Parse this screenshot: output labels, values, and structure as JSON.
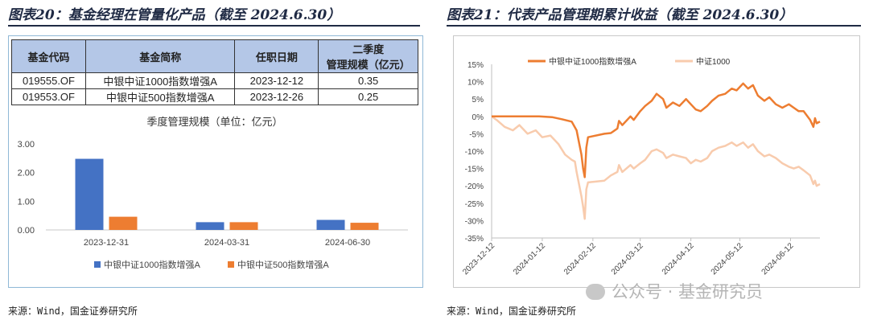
{
  "left_figure": {
    "title": "图表20：基金经理在管量化产品（截至 2024.6.30）",
    "source": "来源：Wind，国金证券研究所",
    "table": {
      "headers": [
        "基金代码",
        "基金简称",
        "任职日期",
        "二季度",
        "管理规模（亿元）"
      ],
      "rows": [
        [
          "019555.OF",
          "中银中证1000指数增强A",
          "2023-12-12",
          "0.35"
        ],
        [
          "019553.OF",
          "中银中证500指数增强A",
          "2023-12-26",
          "0.25"
        ]
      ]
    }
  },
  "right_figure": {
    "title": "图表21：代表产品管理期累计收益（截至 2024.6.30）",
    "source": "来源：Wind，国金证券研究所"
  },
  "watermark": "公众号 · 基金研究员",
  "chart_data": [
    {
      "type": "bar",
      "title": "季度管理规模（单位：亿元）",
      "categories": [
        "2023-12-31",
        "2024-03-31",
        "2024-06-30"
      ],
      "series": [
        {
          "name": "中银中证1000指数增强A",
          "color": "#4472c4",
          "values": [
            2.48,
            0.27,
            0.35
          ]
        },
        {
          "name": "中银中证500指数增强A",
          "color": "#ed7d31",
          "values": [
            0.46,
            0.27,
            0.25
          ]
        }
      ],
      "ylim": [
        0,
        3
      ],
      "yticks": [
        "0.00",
        "1.00",
        "2.00",
        "3.00"
      ],
      "legend": "bottom",
      "grid": false
    },
    {
      "type": "line",
      "ylim": [
        -35,
        15
      ],
      "yticks": [
        "15%",
        "10%",
        "5%",
        "0%",
        "-5%",
        "-10%",
        "-15%",
        "-20%",
        "-25%",
        "-30%",
        "-35%"
      ],
      "xticks": [
        "2023-12-12",
        "2024-01-12",
        "2024-02-12",
        "2024-03-12",
        "2024-04-12",
        "2024-05-12",
        "2024-06-12"
      ],
      "xrange": [
        "2023-12-12",
        "2024-06-30"
      ],
      "legend": "top-left",
      "grid": false,
      "series": [
        {
          "name": "中银中证1000指数增强A",
          "color": "#ed7d31",
          "points": [
            [
              "2023-12-12",
              0
            ],
            [
              "2023-12-20",
              0
            ],
            [
              "2024-01-02",
              0
            ],
            [
              "2024-01-10",
              0
            ],
            [
              "2024-01-18",
              -0.2
            ],
            [
              "2024-01-24",
              -0.8
            ],
            [
              "2024-01-30",
              -1.5
            ],
            [
              "2024-02-02",
              -4
            ],
            [
              "2024-02-05",
              -11
            ],
            [
              "2024-02-06",
              -15
            ],
            [
              "2024-02-07",
              -17.5
            ],
            [
              "2024-02-08",
              -9
            ],
            [
              "2024-02-09",
              -6
            ],
            [
              "2024-02-19",
              -5
            ],
            [
              "2024-02-23",
              -4.8
            ],
            [
              "2024-02-27",
              -3.5
            ],
            [
              "2024-02-28",
              -1.3
            ],
            [
              "2024-03-01",
              -2.5
            ],
            [
              "2024-03-06",
              0
            ],
            [
              "2024-03-08",
              -1
            ],
            [
              "2024-03-12",
              1.5
            ],
            [
              "2024-03-15",
              3
            ],
            [
              "2024-03-19",
              4.5
            ],
            [
              "2024-03-22",
              6.5
            ],
            [
              "2024-03-26",
              5
            ],
            [
              "2024-03-28",
              2.5
            ],
            [
              "2024-04-01",
              4
            ],
            [
              "2024-04-05",
              3
            ],
            [
              "2024-04-09",
              5
            ],
            [
              "2024-04-12",
              3.5
            ],
            [
              "2024-04-15",
              2
            ],
            [
              "2024-04-18",
              1.5
            ],
            [
              "2024-04-22",
              3
            ],
            [
              "2024-04-25",
              4.5
            ],
            [
              "2024-04-29",
              6
            ],
            [
              "2024-05-03",
              6.5
            ],
            [
              "2024-05-07",
              8
            ],
            [
              "2024-05-10",
              7.5
            ],
            [
              "2024-05-14",
              9.5
            ],
            [
              "2024-05-17",
              8
            ],
            [
              "2024-05-20",
              9
            ],
            [
              "2024-05-23",
              6
            ],
            [
              "2024-05-27",
              4.5
            ],
            [
              "2024-05-30",
              5.5
            ],
            [
              "2024-06-03",
              3.5
            ],
            [
              "2024-06-07",
              2.5
            ],
            [
              "2024-06-11",
              3.5
            ],
            [
              "2024-06-14",
              2.5
            ],
            [
              "2024-06-17",
              1.5
            ],
            [
              "2024-06-20",
              1.5
            ],
            [
              "2024-06-24",
              -1
            ],
            [
              "2024-06-26",
              -3
            ],
            [
              "2024-06-27",
              -0.5
            ],
            [
              "2024-06-28",
              -2
            ],
            [
              "2024-06-30",
              -1.5
            ]
          ]
        },
        {
          "name": "中证1000",
          "color": "#f8cbad",
          "points": [
            [
              "2023-12-12",
              0
            ],
            [
              "2023-12-15",
              -1
            ],
            [
              "2023-12-20",
              -3
            ],
            [
              "2023-12-25",
              -4
            ],
            [
              "2023-12-29",
              -2.5
            ],
            [
              "2024-01-03",
              -5
            ],
            [
              "2024-01-08",
              -4
            ],
            [
              "2024-01-12",
              -6
            ],
            [
              "2024-01-17",
              -5.5
            ],
            [
              "2024-01-22",
              -8
            ],
            [
              "2024-01-26",
              -11
            ],
            [
              "2024-01-30",
              -12.5
            ],
            [
              "2024-02-01",
              -13
            ],
            [
              "2024-02-02",
              -16
            ],
            [
              "2024-02-05",
              -23
            ],
            [
              "2024-02-06",
              -26
            ],
            [
              "2024-02-07",
              -29.5
            ],
            [
              "2024-02-08",
              -21
            ],
            [
              "2024-02-09",
              -19
            ],
            [
              "2024-02-19",
              -18.5
            ],
            [
              "2024-02-23",
              -17
            ],
            [
              "2024-02-27",
              -16
            ],
            [
              "2024-02-28",
              -14
            ],
            [
              "2024-03-01",
              -16
            ],
            [
              "2024-03-06",
              -14
            ],
            [
              "2024-03-08",
              -15
            ],
            [
              "2024-03-12",
              -13.5
            ],
            [
              "2024-03-15",
              -12.5
            ],
            [
              "2024-03-19",
              -10
            ],
            [
              "2024-03-22",
              -9.5
            ],
            [
              "2024-03-26",
              -10.5
            ],
            [
              "2024-03-28",
              -12
            ],
            [
              "2024-04-01",
              -11
            ],
            [
              "2024-04-05",
              -11.5
            ],
            [
              "2024-04-09",
              -12
            ],
            [
              "2024-04-12",
              -13.5
            ],
            [
              "2024-04-15",
              -12.5
            ],
            [
              "2024-04-18",
              -13
            ],
            [
              "2024-04-22",
              -12
            ],
            [
              "2024-04-25",
              -10
            ],
            [
              "2024-04-29",
              -9
            ],
            [
              "2024-05-03",
              -8.5
            ],
            [
              "2024-05-07",
              -7.5
            ],
            [
              "2024-05-10",
              -8.5
            ],
            [
              "2024-05-14",
              -7.5
            ],
            [
              "2024-05-17",
              -9
            ],
            [
              "2024-05-20",
              -8
            ],
            [
              "2024-05-23",
              -10
            ],
            [
              "2024-05-27",
              -11.5
            ],
            [
              "2024-05-30",
              -11
            ],
            [
              "2024-06-03",
              -12
            ],
            [
              "2024-06-07",
              -13.5
            ],
            [
              "2024-06-11",
              -14.5
            ],
            [
              "2024-06-14",
              -15
            ],
            [
              "2024-06-17",
              -14.5
            ],
            [
              "2024-06-20",
              -15.5
            ],
            [
              "2024-06-24",
              -17
            ],
            [
              "2024-06-26",
              -19.5
            ],
            [
              "2024-06-27",
              -18.5
            ],
            [
              "2024-06-28",
              -20
            ],
            [
              "2024-06-30",
              -19.5
            ]
          ]
        }
      ]
    }
  ]
}
